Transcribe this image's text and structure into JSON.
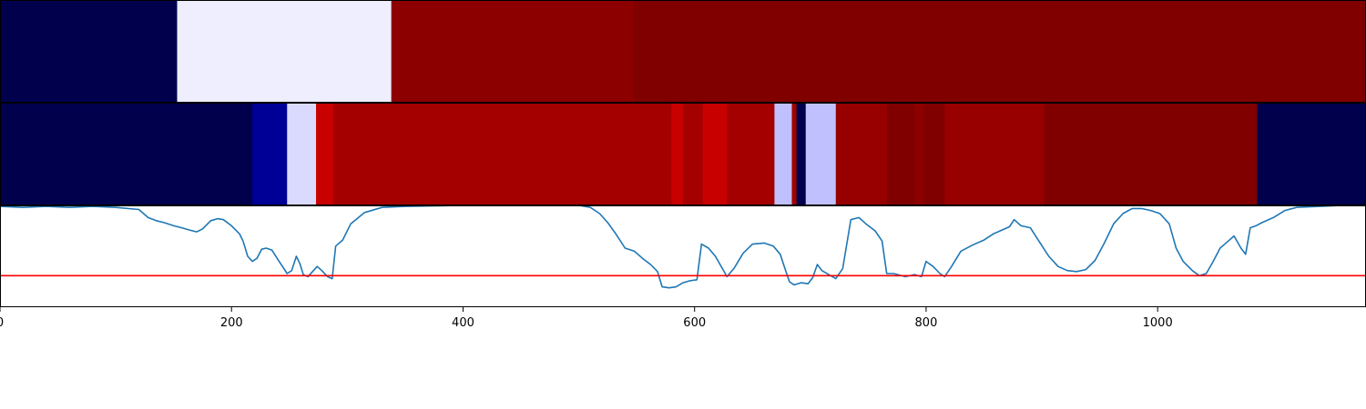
{
  "chart_data": [
    {
      "type": "heatmap",
      "colormap": "seismic",
      "xlim": [
        0,
        1180
      ],
      "segments": [
        {
          "start": 0,
          "end": 153,
          "color": "#00004c"
        },
        {
          "start": 153,
          "end": 338,
          "color": "#eeeeff"
        },
        {
          "start": 338,
          "end": 547,
          "color": "#8c0000"
        },
        {
          "start": 547,
          "end": 1180,
          "color": "#800000"
        }
      ]
    },
    {
      "type": "heatmap",
      "colormap": "seismic",
      "xlim": [
        0,
        1180
      ],
      "segments": [
        {
          "start": 0,
          "end": 218,
          "color": "#00004c"
        },
        {
          "start": 218,
          "end": 248,
          "color": "#000096"
        },
        {
          "start": 248,
          "end": 273,
          "color": "#dadaff"
        },
        {
          "start": 273,
          "end": 288,
          "color": "#c80000"
        },
        {
          "start": 288,
          "end": 580,
          "color": "#a40000"
        },
        {
          "start": 580,
          "end": 590,
          "color": "#c80000"
        },
        {
          "start": 590,
          "end": 607,
          "color": "#a40000"
        },
        {
          "start": 607,
          "end": 628,
          "color": "#c80000"
        },
        {
          "start": 628,
          "end": 669,
          "color": "#a40000"
        },
        {
          "start": 669,
          "end": 684,
          "color": "#c0c0ff"
        },
        {
          "start": 684,
          "end": 688,
          "color": "#a40000"
        },
        {
          "start": 688,
          "end": 696,
          "color": "#00004c"
        },
        {
          "start": 696,
          "end": 722,
          "color": "#c0c0ff"
        },
        {
          "start": 722,
          "end": 766,
          "color": "#980000"
        },
        {
          "start": 766,
          "end": 790,
          "color": "#800000"
        },
        {
          "start": 790,
          "end": 798,
          "color": "#8c0000"
        },
        {
          "start": 798,
          "end": 816,
          "color": "#800000"
        },
        {
          "start": 816,
          "end": 902,
          "color": "#980000"
        },
        {
          "start": 902,
          "end": 1086,
          "color": "#800000"
        },
        {
          "start": 1086,
          "end": 1180,
          "color": "#00004c"
        }
      ]
    },
    {
      "type": "line",
      "xlim": [
        0,
        1180
      ],
      "ylim": [
        0,
        1
      ],
      "line_color": "#1f77b4",
      "threshold": 0.31,
      "threshold_color": "#ff0000",
      "x_ticks": [
        "0",
        "200",
        "400",
        "600",
        "800",
        "1000"
      ],
      "x_tick_values": [
        0,
        200,
        400,
        600,
        800,
        1000
      ],
      "series": [
        {
          "points": [
            [
              0,
              0.99
            ],
            [
              20,
              0.98
            ],
            [
              40,
              0.99
            ],
            [
              60,
              0.98
            ],
            [
              80,
              0.99
            ],
            [
              100,
              0.98
            ],
            [
              120,
              0.96
            ],
            [
              128,
              0.88
            ],
            [
              135,
              0.85
            ],
            [
              142,
              0.83
            ],
            [
              150,
              0.8
            ],
            [
              157,
              0.78
            ],
            [
              163,
              0.76
            ],
            [
              170,
              0.74
            ],
            [
              175,
              0.77
            ],
            [
              182,
              0.85
            ],
            [
              188,
              0.87
            ],
            [
              193,
              0.86
            ],
            [
              200,
              0.8
            ],
            [
              207,
              0.72
            ],
            [
              210,
              0.65
            ],
            [
              214,
              0.5
            ],
            [
              218,
              0.45
            ],
            [
              222,
              0.48
            ],
            [
              226,
              0.57
            ],
            [
              230,
              0.58
            ],
            [
              235,
              0.56
            ],
            [
              240,
              0.47
            ],
            [
              244,
              0.4
            ],
            [
              248,
              0.33
            ],
            [
              252,
              0.36
            ],
            [
              256,
              0.5
            ],
            [
              259,
              0.43
            ],
            [
              262,
              0.32
            ],
            [
              266,
              0.3
            ],
            [
              270,
              0.35
            ],
            [
              274,
              0.4
            ],
            [
              278,
              0.36
            ],
            [
              283,
              0.3
            ],
            [
              287,
              0.28
            ],
            [
              290,
              0.6
            ],
            [
              296,
              0.66
            ],
            [
              303,
              0.82
            ],
            [
              315,
              0.93
            ],
            [
              330,
              0.98
            ],
            [
              350,
              0.99
            ],
            [
              400,
              1.0
            ],
            [
              450,
              1.0
            ],
            [
              500,
              1.0
            ],
            [
              510,
              0.98
            ],
            [
              518,
              0.92
            ],
            [
              525,
              0.83
            ],
            [
              532,
              0.72
            ],
            [
              540,
              0.58
            ],
            [
              548,
              0.55
            ],
            [
              555,
              0.48
            ],
            [
              562,
              0.42
            ],
            [
              568,
              0.35
            ],
            [
              572,
              0.2
            ],
            [
              578,
              0.19
            ],
            [
              584,
              0.2
            ],
            [
              590,
              0.24
            ],
            [
              596,
              0.26
            ],
            [
              602,
              0.27
            ],
            [
              606,
              0.62
            ],
            [
              612,
              0.58
            ],
            [
              618,
              0.5
            ],
            [
              624,
              0.38
            ],
            [
              628,
              0.3
            ],
            [
              634,
              0.38
            ],
            [
              642,
              0.53
            ],
            [
              650,
              0.62
            ],
            [
              660,
              0.63
            ],
            [
              668,
              0.6
            ],
            [
              674,
              0.52
            ],
            [
              678,
              0.38
            ],
            [
              682,
              0.25
            ],
            [
              686,
              0.22
            ],
            [
              692,
              0.24
            ],
            [
              698,
              0.23
            ],
            [
              702,
              0.29
            ],
            [
              706,
              0.42
            ],
            [
              710,
              0.36
            ],
            [
              716,
              0.32
            ],
            [
              722,
              0.28
            ],
            [
              728,
              0.38
            ],
            [
              735,
              0.86
            ],
            [
              742,
              0.88
            ],
            [
              748,
              0.82
            ],
            [
              756,
              0.75
            ],
            [
              762,
              0.65
            ],
            [
              766,
              0.33
            ],
            [
              772,
              0.33
            ],
            [
              782,
              0.3
            ],
            [
              790,
              0.32
            ],
            [
              796,
              0.3
            ],
            [
              800,
              0.45
            ],
            [
              806,
              0.4
            ],
            [
              812,
              0.33
            ],
            [
              816,
              0.3
            ],
            [
              822,
              0.4
            ],
            [
              830,
              0.55
            ],
            [
              840,
              0.61
            ],
            [
              850,
              0.66
            ],
            [
              858,
              0.72
            ],
            [
              866,
              0.76
            ],
            [
              872,
              0.79
            ],
            [
              876,
              0.86
            ],
            [
              882,
              0.8
            ],
            [
              890,
              0.78
            ],
            [
              898,
              0.64
            ],
            [
              906,
              0.5
            ],
            [
              914,
              0.4
            ],
            [
              922,
              0.36
            ],
            [
              930,
              0.35
            ],
            [
              938,
              0.37
            ],
            [
              946,
              0.46
            ],
            [
              954,
              0.63
            ],
            [
              962,
              0.82
            ],
            [
              970,
              0.92
            ],
            [
              978,
              0.97
            ],
            [
              986,
              0.97
            ],
            [
              994,
              0.95
            ],
            [
              1002,
              0.92
            ],
            [
              1010,
              0.82
            ],
            [
              1016,
              0.58
            ],
            [
              1022,
              0.45
            ],
            [
              1030,
              0.36
            ],
            [
              1036,
              0.31
            ],
            [
              1042,
              0.33
            ],
            [
              1048,
              0.45
            ],
            [
              1054,
              0.58
            ],
            [
              1060,
              0.64
            ],
            [
              1066,
              0.7
            ],
            [
              1072,
              0.58
            ],
            [
              1076,
              0.52
            ],
            [
              1080,
              0.78
            ],
            [
              1085,
              0.8
            ],
            [
              1090,
              0.83
            ],
            [
              1100,
              0.88
            ],
            [
              1110,
              0.95
            ],
            [
              1120,
              0.98
            ],
            [
              1140,
              0.99
            ],
            [
              1160,
              1.0
            ],
            [
              1180,
              1.0
            ]
          ]
        }
      ]
    }
  ]
}
